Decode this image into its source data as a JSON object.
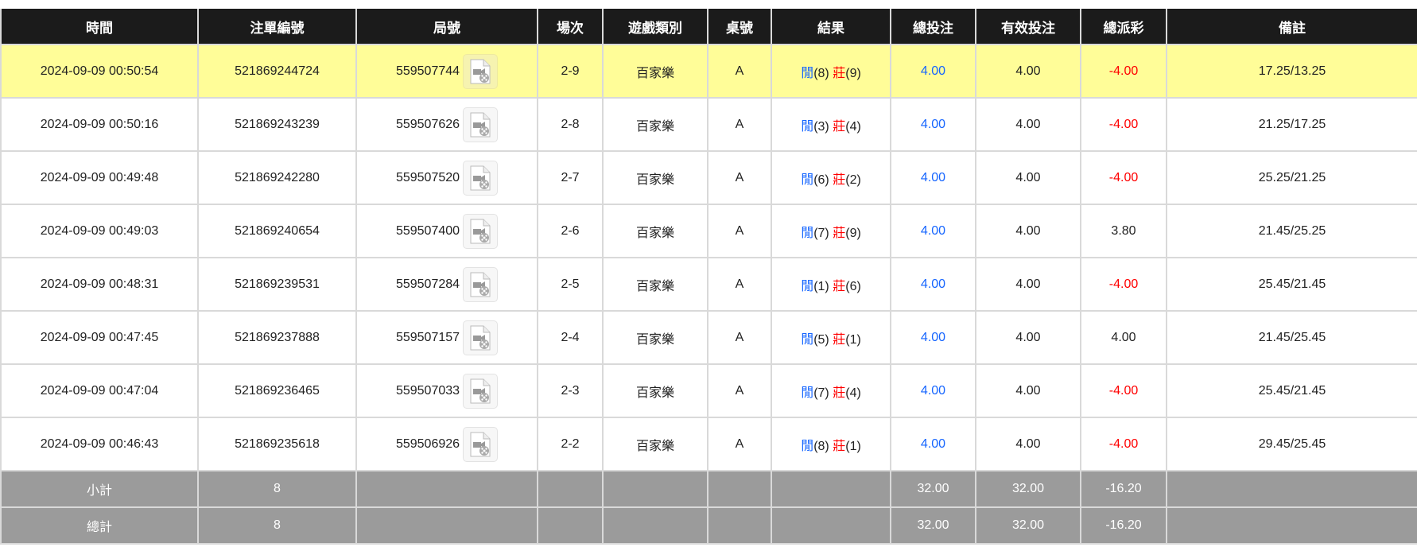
{
  "headers": [
    "時間",
    "注單編號",
    "局號",
    "場次",
    "遊戲類別",
    "桌號",
    "結果",
    "總投注",
    "有效投注",
    "總派彩",
    "備註"
  ],
  "colors": {
    "header_bg": "#1b1b1b",
    "highlight_row": "#fffd98",
    "summary_bg": "#9b9b9b",
    "player": "#1565ff",
    "banker": "#ff0000",
    "negative": "#ff0000",
    "bet": "#1565ff"
  },
  "result_labels": {
    "player": "閒",
    "banker": "莊"
  },
  "rows": [
    {
      "time": "2024-09-09 00:50:54",
      "bet_id": "521869244724",
      "round": "559507744",
      "shoe": "2-9",
      "game": "百家樂",
      "table": "A",
      "player": "(8)",
      "banker": "(9)",
      "total_bet": "4.00",
      "valid_bet": "4.00",
      "payout": "-4.00",
      "payout_negative": true,
      "note": "17.25/13.25",
      "highlighted": true
    },
    {
      "time": "2024-09-09 00:50:16",
      "bet_id": "521869243239",
      "round": "559507626",
      "shoe": "2-8",
      "game": "百家樂",
      "table": "A",
      "player": "(3)",
      "banker": "(4)",
      "total_bet": "4.00",
      "valid_bet": "4.00",
      "payout": "-4.00",
      "payout_negative": true,
      "note": "21.25/17.25"
    },
    {
      "time": "2024-09-09 00:49:48",
      "bet_id": "521869242280",
      "round": "559507520",
      "shoe": "2-7",
      "game": "百家樂",
      "table": "A",
      "player": "(6)",
      "banker": "(2)",
      "total_bet": "4.00",
      "valid_bet": "4.00",
      "payout": "-4.00",
      "payout_negative": true,
      "note": "25.25/21.25"
    },
    {
      "time": "2024-09-09 00:49:03",
      "bet_id": "521869240654",
      "round": "559507400",
      "shoe": "2-6",
      "game": "百家樂",
      "table": "A",
      "player": "(7)",
      "banker": "(9)",
      "total_bet": "4.00",
      "valid_bet": "4.00",
      "payout": "3.80",
      "payout_negative": false,
      "note": "21.45/25.25"
    },
    {
      "time": "2024-09-09 00:48:31",
      "bet_id": "521869239531",
      "round": "559507284",
      "shoe": "2-5",
      "game": "百家樂",
      "table": "A",
      "player": "(1)",
      "banker": "(6)",
      "total_bet": "4.00",
      "valid_bet": "4.00",
      "payout": "-4.00",
      "payout_negative": true,
      "note": "25.45/21.45"
    },
    {
      "time": "2024-09-09 00:47:45",
      "bet_id": "521869237888",
      "round": "559507157",
      "shoe": "2-4",
      "game": "百家樂",
      "table": "A",
      "player": "(5)",
      "banker": "(1)",
      "total_bet": "4.00",
      "valid_bet": "4.00",
      "payout": "4.00",
      "payout_negative": false,
      "note": "21.45/25.45"
    },
    {
      "time": "2024-09-09 00:47:04",
      "bet_id": "521869236465",
      "round": "559507033",
      "shoe": "2-3",
      "game": "百家樂",
      "table": "A",
      "player": "(7)",
      "banker": "(4)",
      "total_bet": "4.00",
      "valid_bet": "4.00",
      "payout": "-4.00",
      "payout_negative": true,
      "note": "25.45/21.45"
    },
    {
      "time": "2024-09-09 00:46:43",
      "bet_id": "521869235618",
      "round": "559506926",
      "shoe": "2-2",
      "game": "百家樂",
      "table": "A",
      "player": "(8)",
      "banker": "(1)",
      "total_bet": "4.00",
      "valid_bet": "4.00",
      "payout": "-4.00",
      "payout_negative": true,
      "note": "29.45/25.45"
    }
  ],
  "summary": [
    {
      "label": "小計",
      "count": "8",
      "total_bet": "32.00",
      "valid_bet": "32.00",
      "payout": "-16.20"
    },
    {
      "label": "總計",
      "count": "8",
      "total_bet": "32.00",
      "valid_bet": "32.00",
      "payout": "-16.20"
    }
  ]
}
